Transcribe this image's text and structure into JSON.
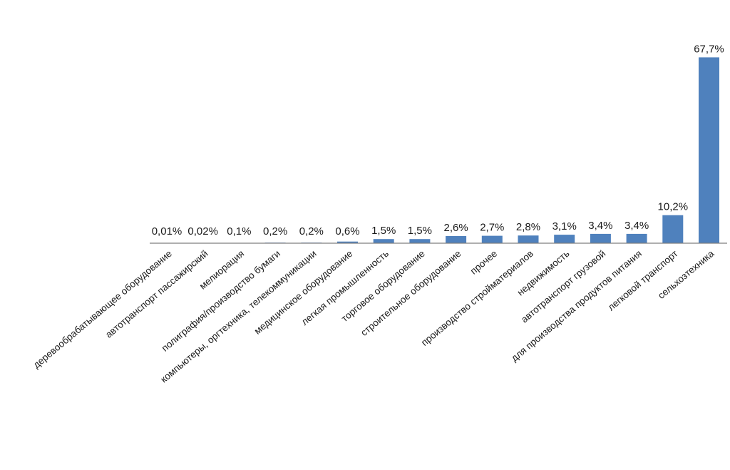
{
  "chart_data": {
    "type": "bar",
    "title": "",
    "xlabel": "",
    "ylabel": "",
    "ylim": [
      0,
      70
    ],
    "grid": false,
    "legend": "none",
    "bar_color": "#4f81bd",
    "axis_color": "#7f7f7f",
    "categories": [
      "деревообрабатывающее оборудование",
      "автотранспорт пассажирский",
      "мелиорация",
      "полиграфия/производство бумаги",
      "компьютеры, оргтехника, телекоммуникации",
      "медицинское оборудование",
      "легкая промышленность",
      "торговое оборудование",
      "строительное оборудование",
      "прочее",
      "производство стройматериалов",
      "недвижимость",
      "автотранспорт грузовой",
      "для производства продуктов питания",
      "легковой транспорт",
      "сельхозтехника"
    ],
    "values": [
      0.01,
      0.02,
      0.1,
      0.2,
      0.2,
      0.6,
      1.5,
      1.5,
      2.6,
      2.7,
      2.8,
      3.1,
      3.4,
      3.4,
      10.2,
      67.7
    ],
    "data_labels": [
      "0,01%",
      "0,02%",
      "0,1%",
      "0,2%",
      "0,2%",
      "0,6%",
      "1,5%",
      "1,5%",
      "2,6%",
      "2,7%",
      "2,8%",
      "3,1%",
      "3,4%",
      "3,4%",
      "10,2%",
      "67,7%"
    ]
  }
}
